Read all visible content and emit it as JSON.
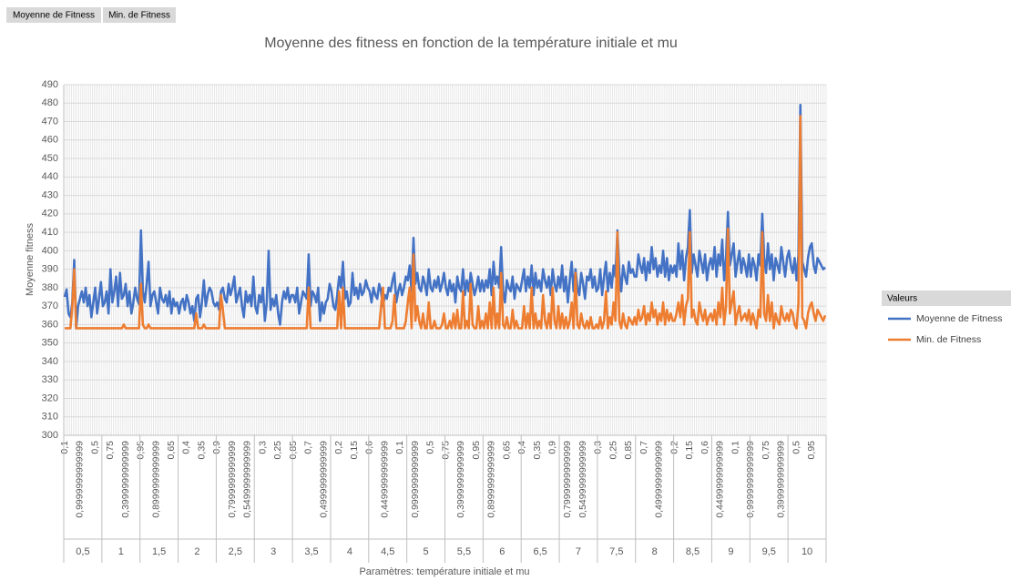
{
  "field_buttons": [
    "Moyenne de Fitness",
    "Min. de Fitness"
  ],
  "chart_data": {
    "type": "line",
    "title": "Moyenne des fitness en fonction de la température initiale et mu",
    "ylabel": "Moyenne fitness",
    "xlabel": "Paramètres: température initiale et mu",
    "legend_title": "Valeurs",
    "legend": "right",
    "grid": true,
    "ylim": [
      300,
      490
    ],
    "yticks": [
      300,
      310,
      320,
      330,
      340,
      350,
      360,
      370,
      380,
      390,
      400,
      410,
      420,
      430,
      440,
      450,
      460,
      470,
      480,
      490
    ],
    "groups": [
      "0,5",
      "1",
      "1,5",
      "2",
      "2,5",
      "3",
      "3,5",
      "4",
      "4,5",
      "5",
      "5,5",
      "6",
      "6,5",
      "7",
      "7,5",
      "8",
      "8,5",
      "9",
      "9,5",
      "10"
    ],
    "categories": [
      "0,1",
      null,
      null,
      null,
      null,
      null,
      null,
      null,
      "0,9999999999999",
      null,
      null,
      null,
      null,
      null,
      null,
      null,
      "0,5",
      null,
      null,
      null,
      null,
      null,
      null,
      null,
      "0,75",
      null,
      null,
      null,
      null,
      null,
      null,
      null,
      "0,3999999999999",
      null,
      null,
      null,
      null,
      null,
      null,
      null,
      "0,95",
      null,
      null,
      null,
      null,
      null,
      null,
      null,
      "0,8999999999999",
      null,
      null,
      null,
      null,
      null,
      null,
      null,
      "0,65",
      null,
      null,
      null,
      null,
      null,
      null,
      null,
      "0,4",
      null,
      null,
      null,
      null,
      null,
      null,
      null,
      "0,35",
      null,
      null,
      null,
      null,
      null,
      null,
      null,
      "0,9",
      null,
      null,
      null,
      null,
      null,
      null,
      null,
      "0,7999999999999",
      null,
      null,
      null,
      null,
      null,
      null,
      null,
      "0,5499999999999",
      null,
      null,
      null,
      null,
      null,
      null,
      null,
      "0,3",
      null,
      null,
      null,
      null,
      null,
      null,
      null,
      "0,25",
      null,
      null,
      null,
      null,
      null,
      null,
      null,
      "0,85",
      null,
      null,
      null,
      null,
      null,
      null,
      null,
      "0,7",
      null,
      null,
      null,
      null,
      null,
      null,
      null,
      "0,4999999999999",
      null,
      null,
      null,
      null,
      null,
      null,
      null,
      "0,2",
      null,
      null,
      null,
      null,
      null,
      null,
      null,
      "0,15",
      null,
      null,
      null,
      null,
      null,
      null,
      null,
      "0,6",
      null,
      null,
      null,
      null,
      null,
      null,
      null,
      "0,4499999999999",
      null,
      null,
      null,
      null,
      null,
      null,
      null,
      "0,1",
      null,
      null,
      null,
      null,
      null,
      null,
      null,
      "0,9999999999999",
      null,
      null,
      null,
      null,
      null,
      null,
      null,
      "0,5",
      null,
      null,
      null,
      null,
      null,
      null,
      null,
      "0,75",
      null,
      null,
      null,
      null,
      null,
      null,
      null,
      "0,3999999999999",
      null,
      null,
      null,
      null,
      null,
      null,
      null,
      "0,95",
      null,
      null,
      null,
      null,
      null,
      null,
      null,
      "0,8999999999999",
      null,
      null,
      null,
      null,
      null,
      null,
      null,
      "0,65",
      null,
      null,
      null,
      null,
      null,
      null,
      null,
      "0,4",
      null,
      null,
      null,
      null,
      null,
      null,
      null,
      "0,35",
      null,
      null,
      null,
      null,
      null,
      null,
      null,
      "0,9",
      null,
      null,
      null,
      null,
      null,
      null,
      null,
      "0,7999999999999",
      null,
      null,
      null,
      null,
      null,
      null,
      null,
      "0,5499999999999",
      null,
      null,
      null,
      null,
      null,
      null,
      null,
      "0,3",
      null,
      null,
      null,
      null,
      null,
      null,
      null,
      "0,25",
      null,
      null,
      null,
      null,
      null,
      null,
      null,
      "0,85",
      null,
      null,
      null,
      null,
      null,
      null,
      null,
      "0,7",
      null,
      null,
      null,
      null,
      null,
      null,
      null,
      "0,4999999999999",
      null,
      null,
      null,
      null,
      null,
      null,
      null,
      "0,2",
      null,
      null,
      null,
      null,
      null,
      null,
      null,
      "0,15",
      null,
      null,
      null,
      null,
      null,
      null,
      null,
      "0,6",
      null,
      null,
      null,
      null,
      null,
      null,
      null,
      "0,4499999999999",
      null,
      null,
      null,
      null,
      null,
      null,
      null,
      "0,1",
      null,
      null,
      null,
      null,
      null,
      null,
      null,
      "0,9999999999999",
      null,
      null,
      null,
      null,
      null,
      null,
      null,
      "0,75",
      null,
      null,
      null,
      null,
      null,
      null,
      null,
      "0,3999999999999",
      null,
      null,
      null,
      null,
      null,
      null,
      null,
      "0,5",
      null,
      null,
      null,
      null,
      null,
      null,
      null,
      "0,95",
      null,
      null,
      null,
      null,
      null,
      null,
      null
    ],
    "series": [
      {
        "name": "Moyenne de Fitness",
        "color": "#4472c4",
        "values": [
          375,
          379,
          366,
          364,
          372,
          395,
          358,
          370,
          374,
          378,
          372,
          380,
          370,
          376,
          364,
          372,
          380,
          366,
          374,
          383,
          370,
          372,
          378,
          366,
          390,
          372,
          378,
          386,
          370,
          388,
          374,
          376,
          382,
          370,
          378,
          366,
          372,
          380,
          374,
          371,
          411,
          378,
          372,
          382,
          394,
          370,
          376,
          378,
          372,
          366,
          380,
          374,
          372,
          376,
          370,
          378,
          366,
          374,
          370,
          372,
          366,
          372,
          374,
          368,
          376,
          372,
          366,
          370,
          362,
          374,
          376,
          364,
          372,
          384,
          370,
          376,
          380,
          378,
          372,
          370,
          372,
          368,
          378,
          380,
          374,
          372,
          382,
          376,
          380,
          386,
          372,
          376,
          380,
          370,
          364,
          378,
          372,
          376,
          370,
          386,
          370,
          366,
          376,
          372,
          380,
          362,
          372,
          400,
          368,
          374,
          370,
          376,
          366,
          360,
          372,
          378,
          374,
          380,
          372,
          376,
          376,
          372,
          380,
          366,
          372,
          378,
          376,
          374,
          398,
          370,
          378,
          376,
          372,
          380,
          362,
          372,
          366,
          372,
          374,
          382,
          378,
          370,
          368,
          376,
          386,
          380,
          394,
          374,
          378,
          370,
          372,
          388,
          376,
          380,
          374,
          382,
          376,
          378,
          384,
          380,
          378,
          372,
          380,
          376,
          374,
          382,
          378,
          370,
          376,
          374,
          380,
          378,
          384,
          388,
          372,
          378,
          382,
          376,
          380,
          386,
          384,
          392,
          378,
          407,
          382,
          388,
          380,
          378,
          386,
          382,
          376,
          390,
          380,
          378,
          384,
          380,
          386,
          378,
          382,
          388,
          380,
          376,
          384,
          378,
          382,
          372,
          386,
          380,
          378,
          390,
          376,
          384,
          378,
          388,
          382,
          376,
          380,
          386,
          378,
          384,
          378,
          384,
          380,
          390,
          376,
          394,
          382,
          386,
          380,
          402,
          378,
          372,
          384,
          380,
          378,
          386,
          374,
          382,
          380,
          378,
          384,
          390,
          378,
          386,
          380,
          392,
          376,
          388,
          380,
          384,
          378,
          390,
          384,
          380,
          386,
          376,
          390,
          382,
          378,
          386,
          380,
          392,
          378,
          386,
          372,
          384,
          394,
          378,
          390,
          380,
          376,
          388,
          382,
          374,
          386,
          384,
          390,
          380,
          386,
          378,
          380,
          390,
          376,
          386,
          394,
          378,
          388,
          380,
          392,
          386,
          411,
          388,
          378,
          392,
          386,
          382,
          394,
          388,
          390,
          386,
          386,
          398,
          392,
          388,
          396,
          384,
          394,
          388,
          402,
          390,
          396,
          386,
          392,
          388,
          400,
          386,
          396,
          384,
          392,
          388,
          392,
          386,
          404,
          390,
          400,
          384,
          396,
          402,
          422,
          388,
          398,
          392,
          386,
          400,
          394,
          388,
          398,
          384,
          392,
          396,
          390,
          402,
          386,
          398,
          392,
          406,
          384,
          396,
          421,
          392,
          398,
          404,
          386,
          394,
          400,
          388,
          396,
          392,
          386,
          398,
          386,
          396,
          392,
          384,
          398,
          392,
          420,
          396,
          388,
          404,
          390,
          398,
          384,
          396,
          392,
          388,
          402,
          394,
          386,
          396,
          400,
          392,
          388,
          396,
          384,
          398,
          479,
          394,
          390,
          386,
          396,
          402,
          404,
          392,
          388,
          396,
          394,
          392,
          390,
          391
        ]
      },
      {
        "name": "Min. de Fitness",
        "color": "#ed7d31",
        "values": [
          358,
          358,
          358,
          358,
          370,
          390,
          358,
          358,
          358,
          358,
          358,
          358,
          358,
          358,
          358,
          358,
          358,
          358,
          358,
          358,
          358,
          358,
          358,
          358,
          358,
          358,
          358,
          358,
          358,
          358,
          358,
          360,
          358,
          358,
          358,
          358,
          358,
          358,
          358,
          358,
          382,
          360,
          358,
          358,
          360,
          358,
          358,
          358,
          358,
          358,
          358,
          358,
          358,
          358,
          358,
          358,
          358,
          358,
          358,
          358,
          358,
          358,
          358,
          358,
          358,
          358,
          358,
          358,
          358,
          366,
          358,
          358,
          358,
          360,
          358,
          358,
          358,
          358,
          358,
          358,
          358,
          358,
          376,
          368,
          358,
          358,
          358,
          358,
          358,
          358,
          358,
          358,
          358,
          358,
          358,
          358,
          358,
          358,
          358,
          358,
          358,
          358,
          358,
          358,
          358,
          358,
          358,
          358,
          358,
          358,
          358,
          358,
          358,
          358,
          358,
          358,
          358,
          358,
          358,
          358,
          358,
          358,
          358,
          358,
          358,
          358,
          358,
          358,
          380,
          358,
          358,
          358,
          358,
          358,
          358,
          358,
          358,
          358,
          358,
          358,
          358,
          358,
          358,
          358,
          378,
          358,
          380,
          358,
          358,
          358,
          358,
          358,
          358,
          358,
          358,
          358,
          358,
          358,
          358,
          358,
          358,
          358,
          358,
          358,
          358,
          358,
          370,
          380,
          358,
          358,
          358,
          358,
          362,
          376,
          358,
          358,
          358,
          358,
          358,
          362,
          372,
          380,
          358,
          398,
          362,
          370,
          362,
          358,
          366,
          358,
          358,
          372,
          358,
          358,
          362,
          358,
          358,
          358,
          360,
          366,
          358,
          358,
          362,
          358,
          366,
          358,
          368,
          358,
          358,
          378,
          358,
          362,
          358,
          382,
          360,
          358,
          358,
          370,
          358,
          362,
          358,
          366,
          358,
          372,
          358,
          380,
          358,
          366,
          358,
          388,
          360,
          358,
          364,
          358,
          358,
          368,
          358,
          362,
          358,
          358,
          358,
          370,
          358,
          366,
          358,
          380,
          358,
          366,
          358,
          362,
          358,
          376,
          362,
          358,
          366,
          358,
          380,
          362,
          358,
          370,
          358,
          366,
          358,
          364,
          358,
          362,
          372,
          358,
          388,
          360,
          358,
          366,
          360,
          358,
          362,
          358,
          364,
          358,
          358,
          360,
          358,
          364,
          358,
          362,
          378,
          358,
          364,
          360,
          372,
          362,
          410,
          362,
          358,
          366,
          360,
          358,
          364,
          362,
          360,
          364,
          360,
          368,
          362,
          364,
          370,
          360,
          366,
          362,
          372,
          364,
          368,
          360,
          366,
          362,
          372,
          360,
          368,
          362,
          366,
          362,
          362,
          366,
          372,
          364,
          376,
          360,
          370,
          374,
          410,
          364,
          368,
          362,
          360,
          372,
          366,
          362,
          368,
          360,
          364,
          366,
          362,
          368,
          360,
          372,
          364,
          380,
          360,
          370,
          412,
          366,
          372,
          378,
          360,
          366,
          370,
          362,
          364,
          366,
          362,
          368,
          360,
          366,
          362,
          358,
          368,
          364,
          410,
          366,
          362,
          376,
          362,
          372,
          358,
          366,
          362,
          360,
          370,
          364,
          362,
          366,
          362,
          368,
          366,
          360,
          358,
          372,
          473,
          364,
          362,
          358,
          366,
          370,
          372,
          366,
          362,
          368,
          366,
          364,
          362,
          365
        ]
      }
    ]
  }
}
